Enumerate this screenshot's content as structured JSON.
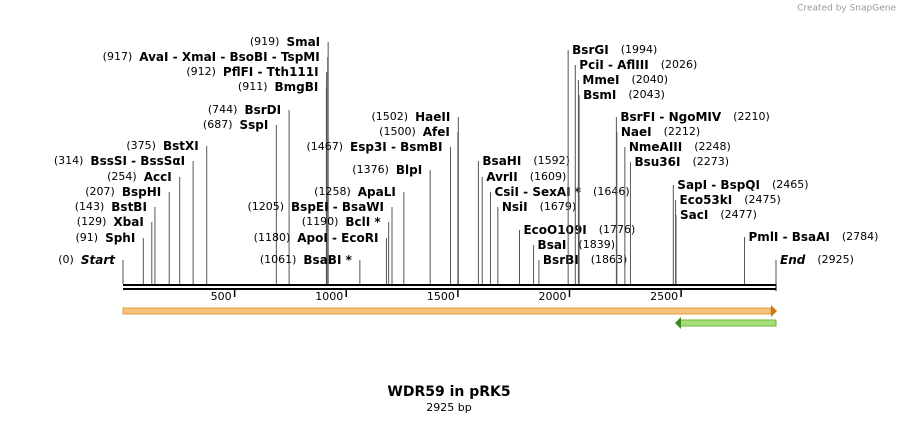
{
  "credit": "Created by SnapGene",
  "title": "WDR59 in pRK5",
  "subtitle": "2925 bp",
  "length": 2925,
  "ticks": [
    500,
    1000,
    1500,
    2000,
    2500
  ],
  "start": {
    "name": "Start",
    "position": {
      "value": 0,
      "label": "(0)"
    }
  },
  "end": {
    "name": "End",
    "position": {
      "value": 2925,
      "label": "(2925)"
    }
  },
  "sites": [
    {
      "name": "SphI",
      "position": {
        "value": 91,
        "label": "(91)"
      }
    },
    {
      "name": "XbaI",
      "position": {
        "value": 129,
        "label": "(129)"
      }
    },
    {
      "name": "BstBI",
      "position": {
        "value": 143,
        "label": "(143)"
      }
    },
    {
      "name": "BspHI",
      "position": {
        "value": 207,
        "label": "(207)"
      }
    },
    {
      "name": "AccI",
      "position": {
        "value": 254,
        "label": "(254)"
      }
    },
    {
      "name": "BssSI - BssSαI",
      "position": {
        "value": 314,
        "label": "(314)"
      }
    },
    {
      "name": "BstXI",
      "position": {
        "value": 375,
        "label": "(375)"
      }
    },
    {
      "name": "SspI",
      "position": {
        "value": 687,
        "label": "(687)"
      }
    },
    {
      "name": "BsrDI",
      "position": {
        "value": 744,
        "label": "(744)"
      }
    },
    {
      "name": "BmgBI",
      "position": {
        "value": 911,
        "label": "(911)"
      }
    },
    {
      "name": "PflFI - Tth111I",
      "position": {
        "value": 912,
        "label": "(912)"
      }
    },
    {
      "name": "AvaI - XmaI - BsoBI - TspMI",
      "position": {
        "value": 917,
        "label": "(917)"
      }
    },
    {
      "name": "SmaI",
      "position": {
        "value": 919,
        "label": "(919)"
      }
    },
    {
      "name": "BsaBI *",
      "position": {
        "value": 1061,
        "label": "(1061)"
      }
    },
    {
      "name": "ApoI - EcoRI",
      "position": {
        "value": 1180,
        "label": "(1180)"
      }
    },
    {
      "name": "BclI *",
      "position": {
        "value": 1190,
        "label": "(1190)"
      }
    },
    {
      "name": "BspEI - BsaWI",
      "position": {
        "value": 1205,
        "label": "(1205)"
      }
    },
    {
      "name": "ApaLI",
      "position": {
        "value": 1258,
        "label": "(1258)"
      }
    },
    {
      "name": "BlpI",
      "position": {
        "value": 1376,
        "label": "(1376)"
      }
    },
    {
      "name": "Esp3I - BsmBI",
      "position": {
        "value": 1467,
        "label": "(1467)"
      }
    },
    {
      "name": "AfeI",
      "position": {
        "value": 1500,
        "label": "(1500)"
      }
    },
    {
      "name": "HaeII",
      "position": {
        "value": 1502,
        "label": "(1502)"
      }
    },
    {
      "name": "BsaHI",
      "position": {
        "value": 1592,
        "label": "(1592)"
      }
    },
    {
      "name": "AvrII",
      "position": {
        "value": 1609,
        "label": "(1609)"
      }
    },
    {
      "name": "CsiI - SexAI *",
      "position": {
        "value": 1646,
        "label": "(1646)"
      }
    },
    {
      "name": "NsiI",
      "position": {
        "value": 1679,
        "label": "(1679)"
      }
    },
    {
      "name": "EcoO109I",
      "position": {
        "value": 1776,
        "label": "(1776)"
      }
    },
    {
      "name": "BsaI",
      "position": {
        "value": 1839,
        "label": "(1839)"
      }
    },
    {
      "name": "BsrBI",
      "position": {
        "value": 1863,
        "label": "(1863)"
      }
    },
    {
      "name": "BsrGI",
      "position": {
        "value": 1994,
        "label": "(1994)"
      }
    },
    {
      "name": "PciI - AflIII",
      "position": {
        "value": 2026,
        "label": "(2026)"
      }
    },
    {
      "name": "MmeI",
      "position": {
        "value": 2040,
        "label": "(2040)"
      }
    },
    {
      "name": "BsmI",
      "position": {
        "value": 2043,
        "label": "(2043)"
      }
    },
    {
      "name": "BsrFI - NgoMIV",
      "position": {
        "value": 2210,
        "label": "(2210)"
      }
    },
    {
      "name": "NaeI",
      "position": {
        "value": 2212,
        "label": "(2212)"
      }
    },
    {
      "name": "NmeAIII",
      "position": {
        "value": 2248,
        "label": "(2248)"
      }
    },
    {
      "name": "Bsu36I",
      "position": {
        "value": 2273,
        "label": "(2273)"
      }
    },
    {
      "name": "SapI - BspQI",
      "position": {
        "value": 2465,
        "label": "(2465)"
      }
    },
    {
      "name": "Eco53kI",
      "position": {
        "value": 2475,
        "label": "(2475)"
      }
    },
    {
      "name": "SacI",
      "position": {
        "value": 2477,
        "label": "(2477)"
      }
    },
    {
      "name": "PmlI - BsaAI",
      "position": {
        "value": 2784,
        "label": "(2784)"
      }
    }
  ]
}
